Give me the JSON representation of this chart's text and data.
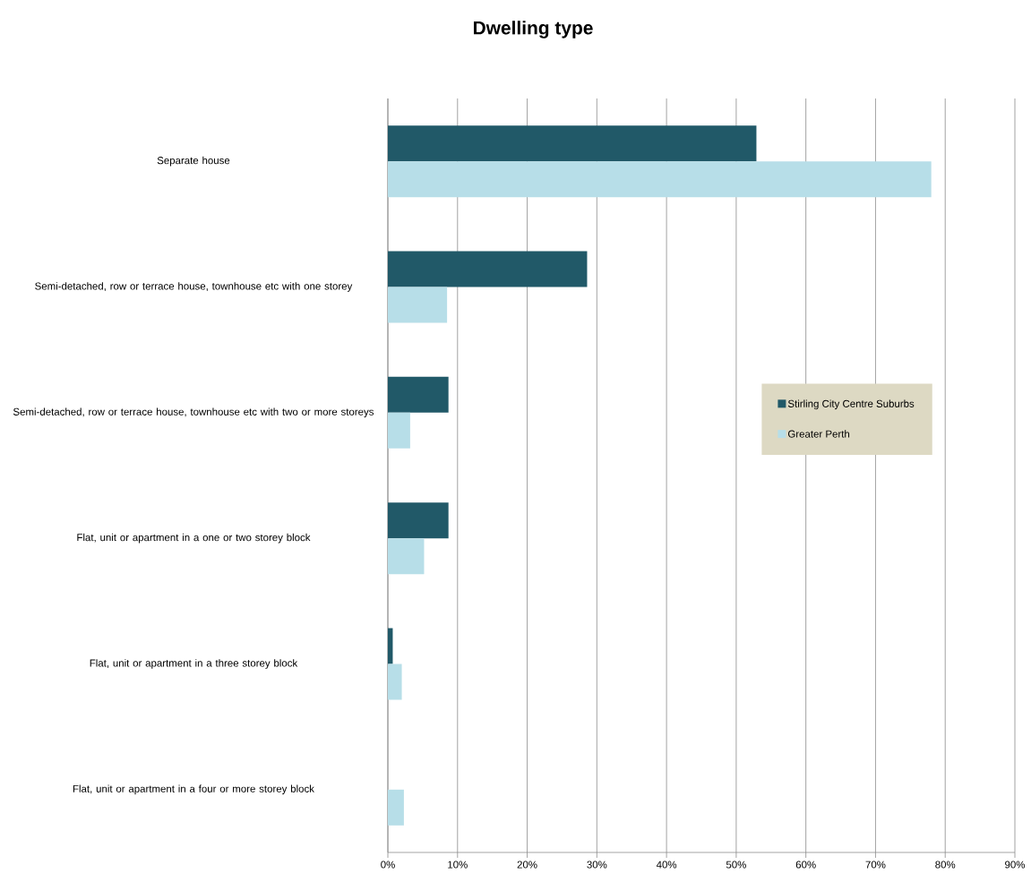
{
  "chart_data": {
    "type": "bar",
    "orientation": "horizontal",
    "title": "Dwelling type",
    "categories": [
      "Separate house",
      "Semi-detached, row or terrace house, townhouse etc with one storey",
      "Semi-detached, row or terrace house, townhouse etc with two or more storeys",
      "Flat, unit or apartment in a one or two storey block",
      "Flat, unit or apartment in a three storey block",
      "Flat, unit or apartment in a four or more storey block"
    ],
    "series": [
      {
        "name": "Stirling City Centre Suburbs",
        "color": "#215968",
        "values": [
          52.9,
          28.6,
          8.7,
          8.7,
          0.7,
          0
        ]
      },
      {
        "name": "Greater Perth",
        "color": "#b7dee8",
        "values": [
          78.0,
          8.5,
          3.2,
          5.2,
          2.0,
          2.3
        ]
      }
    ],
    "xlim": [
      0,
      90
    ],
    "xticks": [
      {
        "value": 0,
        "label": "0%"
      },
      {
        "value": 10,
        "label": "10%"
      },
      {
        "value": 20,
        "label": "20%"
      },
      {
        "value": 30,
        "label": "30%"
      },
      {
        "value": 40,
        "label": "40%"
      },
      {
        "value": 50,
        "label": "50%"
      },
      {
        "value": 60,
        "label": "60%"
      },
      {
        "value": 70,
        "label": "70%"
      },
      {
        "value": 80,
        "label": "80%"
      },
      {
        "value": 90,
        "label": "90%"
      }
    ],
    "grid": "x",
    "legend": "right"
  }
}
